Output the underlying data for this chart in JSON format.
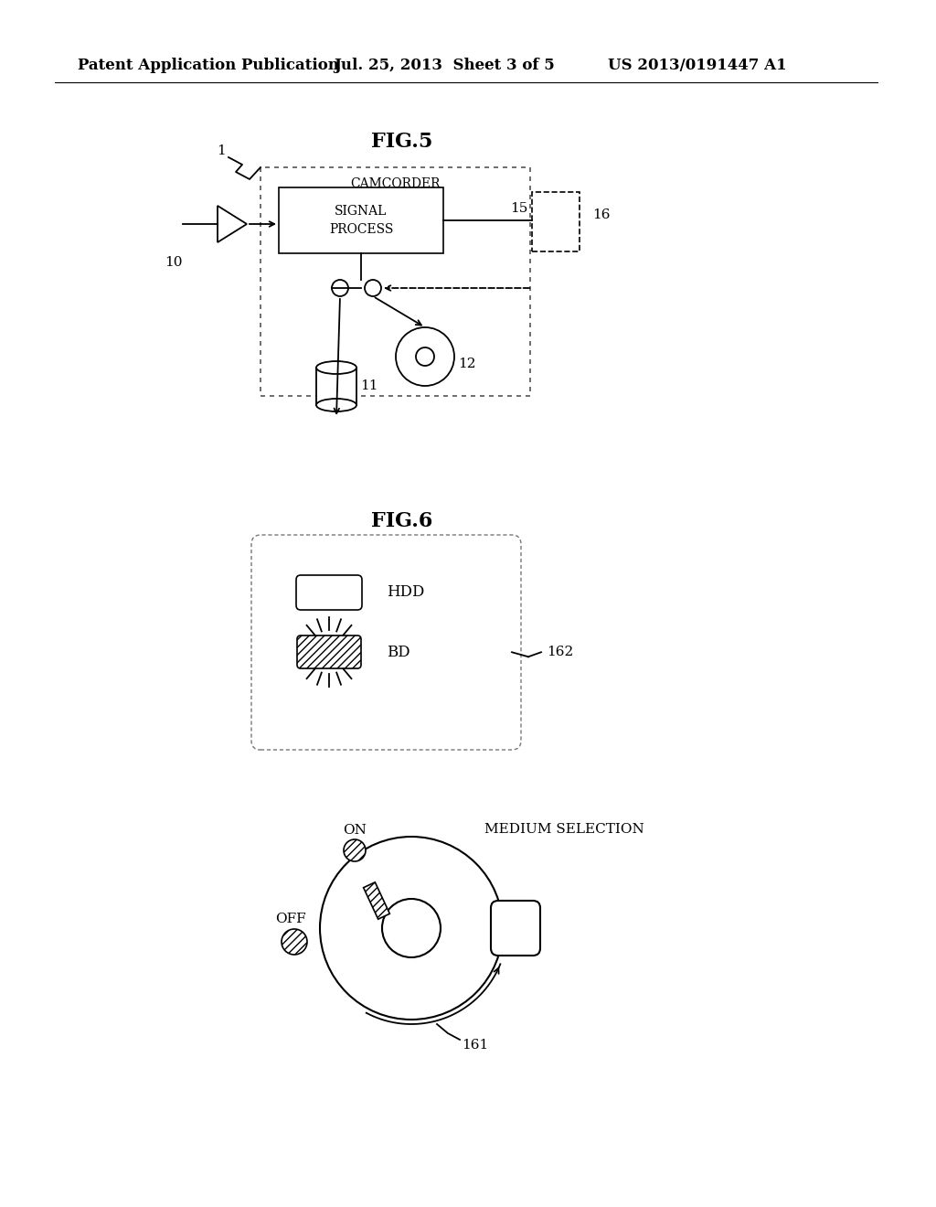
{
  "bg_color": "#ffffff",
  "header_text": "Patent Application Publication",
  "header_date": "Jul. 25, 2013  Sheet 3 of 5",
  "header_patent": "US 2013/0191447 A1",
  "fig5_title": "FIG.5",
  "fig6_title": "FIG.6",
  "label_1": "1",
  "label_10": "10",
  "label_11": "11",
  "label_12": "12",
  "label_15": "15",
  "label_16": "16",
  "label_161": "161",
  "label_162": "162",
  "label_camcorder": "CAMCORDER",
  "label_signal": "SIGNAL\nPROCESS",
  "label_hdd": "HDD",
  "label_bd": "BD",
  "label_on": "ON",
  "label_off": "OFF",
  "label_medium": "MEDIUM SELECTION"
}
